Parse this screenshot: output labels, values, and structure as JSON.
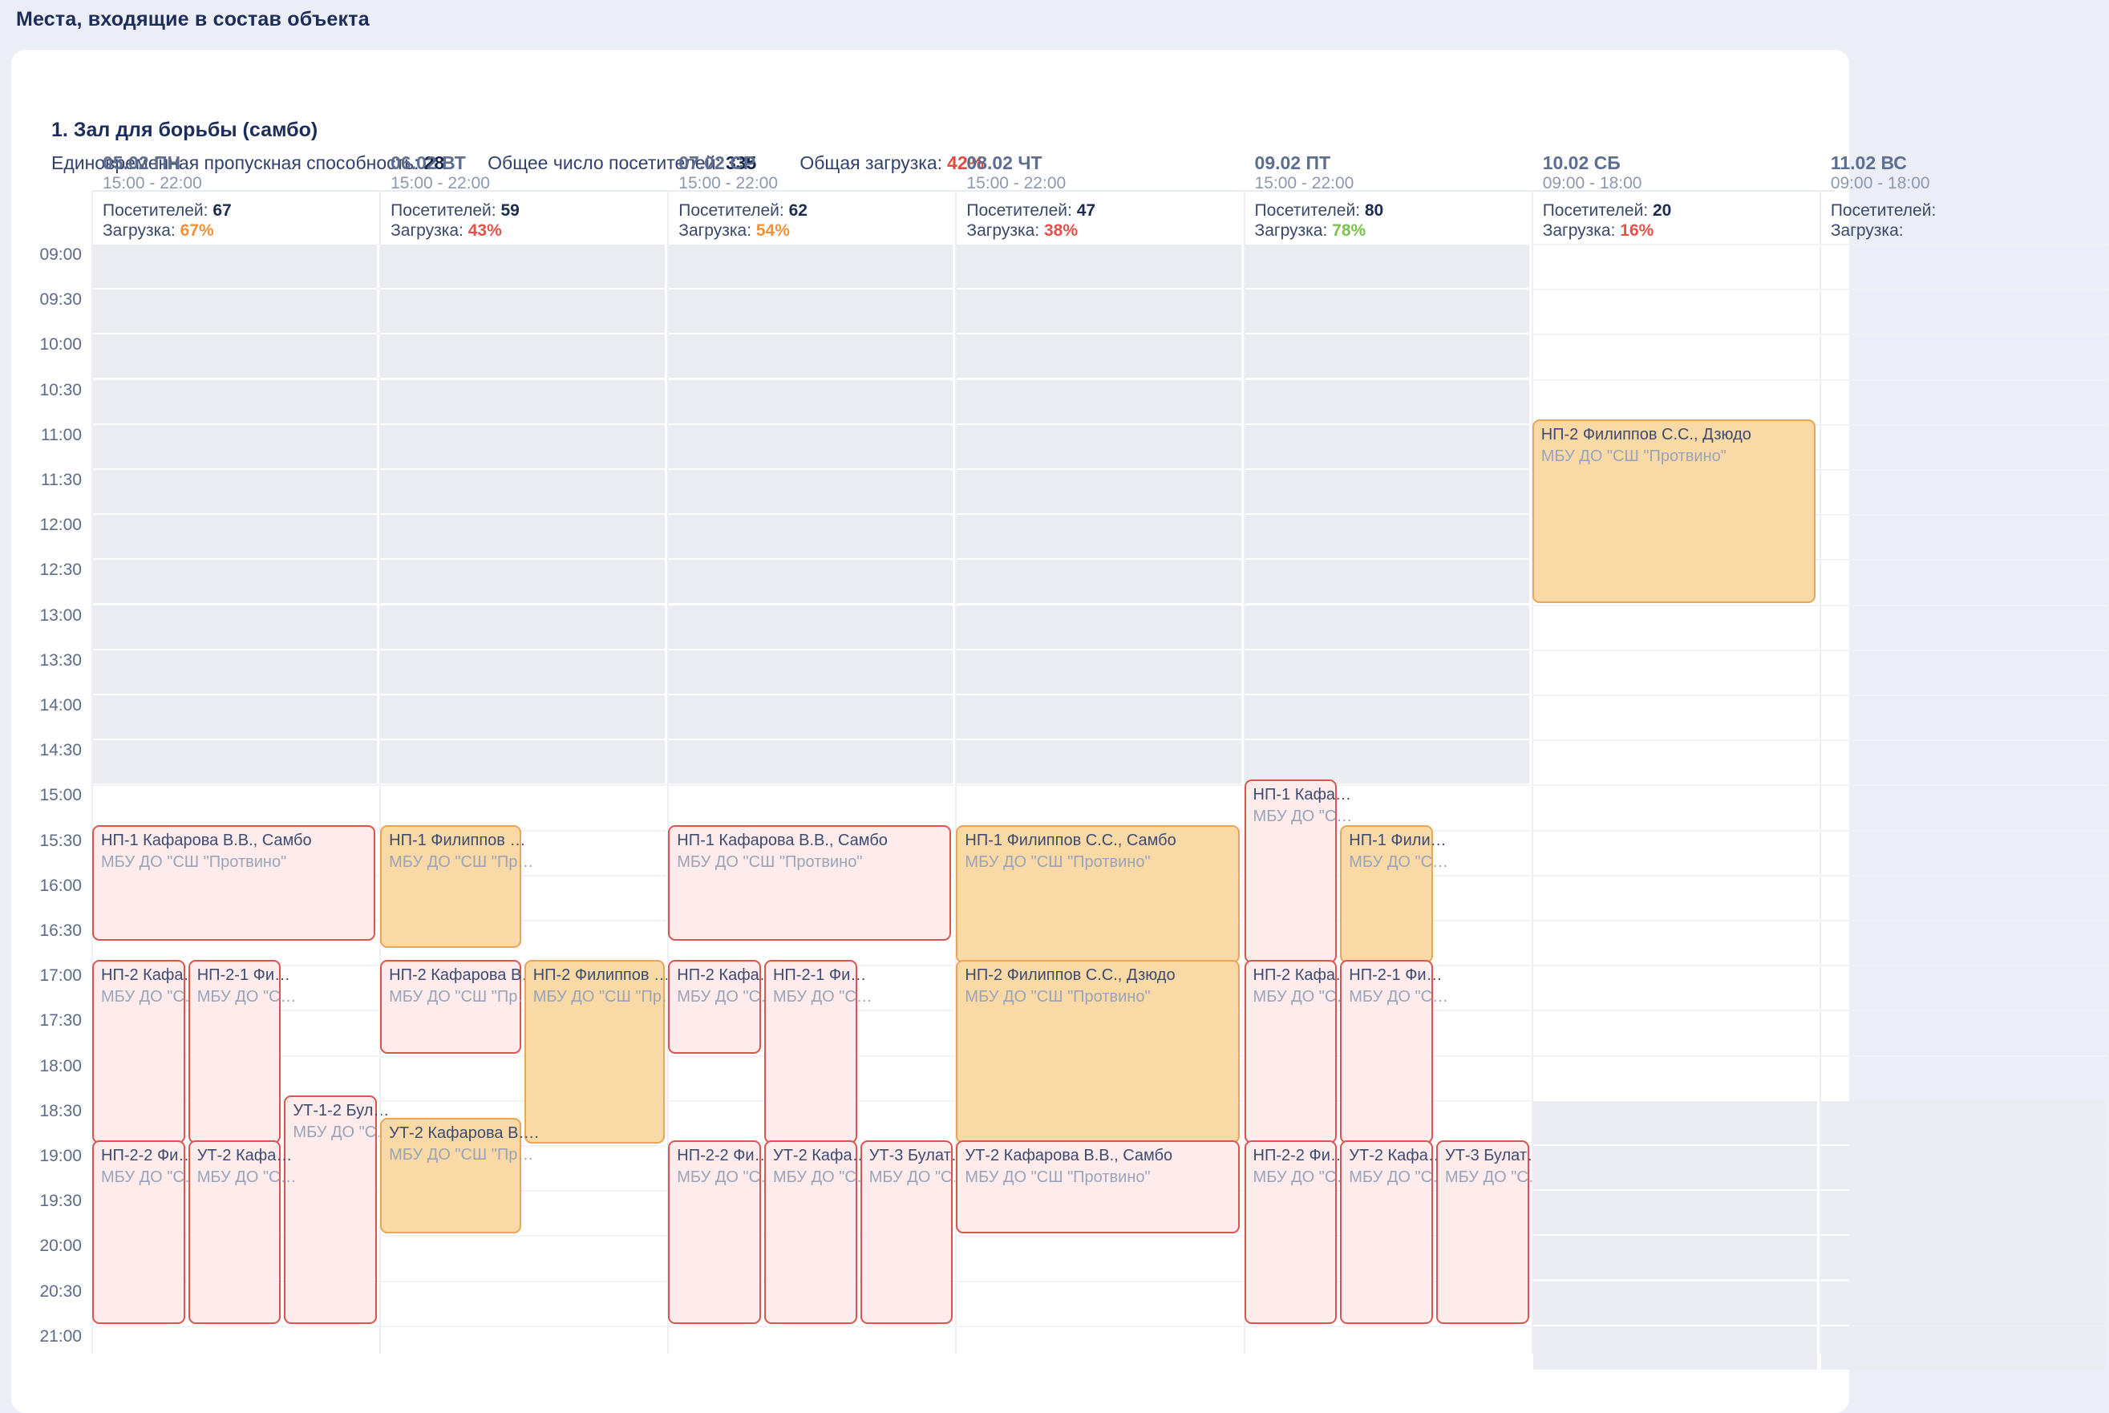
{
  "page": {
    "title": "Места, входящие в состав объекта"
  },
  "facility": {
    "title": "1. Зал для борьбы (самбо)",
    "stats": [
      {
        "label": "Единовременная пропускная способность:",
        "value": "28",
        "color": "#152349"
      },
      {
        "label": "Общее число посетителей:",
        "value": "335",
        "color": "#152349"
      },
      {
        "label": "Общая загрузка:",
        "value": "42%",
        "color": "#e8473f"
      }
    ]
  },
  "calendar": {
    "time_ticks": [
      "09:00",
      "09:30",
      "10:00",
      "10:30",
      "11:00",
      "11:30",
      "12:00",
      "12:30",
      "13:00",
      "13:30",
      "14:00",
      "14:30",
      "15:00",
      "15:30",
      "16:00",
      "16:30",
      "17:00",
      "17:30",
      "18:00",
      "18:30",
      "19:00",
      "19:30",
      "20:00",
      "20:30",
      "21:00"
    ],
    "visitors_label": "Посетителей:",
    "load_label": "Загрузка:",
    "colors": {
      "load_orange": "#f0923c",
      "load_red": "#e8504a",
      "load_green": "#7cc24e",
      "pink_bg": "#fdeceb",
      "pink_border": "#d9554f",
      "orange_bg": "#f9d9a6",
      "orange_border": "#e9a558"
    },
    "days": [
      {
        "label": "05.02 ПН",
        "hours": "15:00 - 22:00",
        "visitors": "67",
        "load": "67%",
        "load_color": "load_orange",
        "closed": [
          [
            "09:00",
            "15:00"
          ]
        ],
        "events": [
          {
            "title": "НП-1 Кафарова В.В., Самбо",
            "org": "МБУ ДО \"СШ \"Протвино\"",
            "start": "15:30",
            "end": "16:45",
            "lane": 0,
            "lanes": 1,
            "color": "pink"
          },
          {
            "title": "НП-2 Кафа…",
            "org": "МБУ ДО \"С…",
            "start": "17:00",
            "end": "19:00",
            "lane": 0,
            "lanes": 3,
            "color": "pink"
          },
          {
            "title": "НП-2-1 Фи…",
            "org": "МБУ ДО \"С…",
            "start": "17:00",
            "end": "19:00",
            "lane": 1,
            "lanes": 3,
            "color": "pink"
          },
          {
            "title": "УТ-1-2 Бул…",
            "org": "МБУ ДО \"С…",
            "start": "18:30",
            "end": "21:00",
            "lane": 2,
            "lanes": 3,
            "color": "pink"
          },
          {
            "title": "НП-2-2 Фи…",
            "org": "МБУ ДО \"С…",
            "start": "19:00",
            "end": "21:00",
            "lane": 0,
            "lanes": 3,
            "color": "pink"
          },
          {
            "title": "УТ-2 Кафа…",
            "org": "МБУ ДО \"С…",
            "start": "19:00",
            "end": "21:00",
            "lane": 1,
            "lanes": 3,
            "color": "pink"
          }
        ]
      },
      {
        "label": "06.02 ВТ",
        "hours": "15:00 - 22:00",
        "visitors": "59",
        "load": "43%",
        "load_color": "load_red",
        "closed": [
          [
            "09:00",
            "15:00"
          ]
        ],
        "events": [
          {
            "title": "НП-1 Филиппов …",
            "org": "МБУ ДО \"СШ \"Пр…",
            "start": "15:30",
            "end": "16:50",
            "lane": 0,
            "lanes": 2,
            "color": "orange"
          },
          {
            "title": "НП-2 Кафарова В…",
            "org": "МБУ ДО \"СШ \"Пр…",
            "start": "17:00",
            "end": "18:00",
            "lane": 0,
            "lanes": 2,
            "color": "pink"
          },
          {
            "title": "НП-2 Филиппов …",
            "org": "МБУ ДО \"СШ \"Пр…",
            "start": "17:00",
            "end": "19:00",
            "lane": 1,
            "lanes": 2,
            "color": "orange"
          },
          {
            "title": "УТ-2 Кафарова В….",
            "org": "МБУ ДО \"СШ \"Пр…",
            "start": "18:45",
            "end": "20:00",
            "lane": 0,
            "lanes": 2,
            "color": "orange"
          }
        ]
      },
      {
        "label": "07.02 СР",
        "hours": "15:00 - 22:00",
        "visitors": "62",
        "load": "54%",
        "load_color": "load_orange",
        "closed": [
          [
            "09:00",
            "15:00"
          ]
        ],
        "events": [
          {
            "title": "НП-1 Кафарова В.В., Самбо",
            "org": "МБУ ДО \"СШ \"Протвино\"",
            "start": "15:30",
            "end": "16:45",
            "lane": 0,
            "lanes": 1,
            "color": "pink"
          },
          {
            "title": "НП-2 Кафа…",
            "org": "МБУ ДО \"С…",
            "start": "17:00",
            "end": "18:00",
            "lane": 0,
            "lanes": 3,
            "color": "pink"
          },
          {
            "title": "НП-2-1 Фи…",
            "org": "МБУ ДО \"С…",
            "start": "17:00",
            "end": "19:00",
            "lane": 1,
            "lanes": 3,
            "color": "pink"
          },
          {
            "title": "НП-2-2 Фи…",
            "org": "МБУ ДО \"С…",
            "start": "19:00",
            "end": "21:00",
            "lane": 0,
            "lanes": 3,
            "color": "pink"
          },
          {
            "title": "УТ-2 Кафа…",
            "org": "МБУ ДО \"С…",
            "start": "19:00",
            "end": "21:00",
            "lane": 1,
            "lanes": 3,
            "color": "pink"
          },
          {
            "title": "УТ-3 Булат…",
            "org": "МБУ ДО \"С…",
            "start": "19:00",
            "end": "21:00",
            "lane": 2,
            "lanes": 3,
            "color": "pink"
          }
        ]
      },
      {
        "label": "08.02 ЧТ",
        "hours": "15:00 - 22:00",
        "visitors": "47",
        "load": "38%",
        "load_color": "load_red",
        "closed": [
          [
            "09:00",
            "15:00"
          ]
        ],
        "events": [
          {
            "title": "НП-1 Филиппов С.С., Самбо",
            "org": "МБУ ДО \"СШ \"Протвино\"",
            "start": "15:30",
            "end": "17:00",
            "lane": 0,
            "lanes": 1,
            "color": "orange"
          },
          {
            "title": "НП-2 Филиппов С.С., Дзюдо",
            "org": "МБУ ДО \"СШ \"Протвино\"",
            "start": "17:00",
            "end": "19:00",
            "lane": 0,
            "lanes": 1,
            "color": "orange"
          },
          {
            "title": "УТ-2 Кафарова В.В., Самбо",
            "org": "МБУ ДО \"СШ \"Протвино\"",
            "start": "19:00",
            "end": "20:00",
            "lane": 0,
            "lanes": 1,
            "color": "pink"
          }
        ]
      },
      {
        "label": "09.02 ПТ",
        "hours": "15:00 - 22:00",
        "visitors": "80",
        "load": "78%",
        "load_color": "load_green",
        "closed": [
          [
            "09:00",
            "15:00"
          ]
        ],
        "events": [
          {
            "title": "НП-1 Кафа…",
            "org": "МБУ ДО \"С…",
            "start": "15:00",
            "end": "17:00",
            "lane": 0,
            "lanes": 3,
            "color": "pink"
          },
          {
            "title": "НП-1 Фили…",
            "org": "МБУ ДО \"С…",
            "start": "15:30",
            "end": "17:00",
            "lane": 1,
            "lanes": 3,
            "color": "orange"
          },
          {
            "title": "НП-2 Кафа…",
            "org": "МБУ ДО \"С…",
            "start": "17:00",
            "end": "19:00",
            "lane": 0,
            "lanes": 3,
            "color": "pink"
          },
          {
            "title": "НП-2-1 Фи…",
            "org": "МБУ ДО \"С…",
            "start": "17:00",
            "end": "19:00",
            "lane": 1,
            "lanes": 3,
            "color": "pink"
          },
          {
            "title": "НП-2-2 Фи…",
            "org": "МБУ ДО \"С…",
            "start": "19:00",
            "end": "21:00",
            "lane": 0,
            "lanes": 3,
            "color": "pink"
          },
          {
            "title": "УТ-2 Кафа…",
            "org": "МБУ ДО \"С…",
            "start": "19:00",
            "end": "21:00",
            "lane": 1,
            "lanes": 3,
            "color": "pink"
          },
          {
            "title": "УТ-3 Булат…",
            "org": "МБУ ДО \"С…",
            "start": "19:00",
            "end": "21:00",
            "lane": 2,
            "lanes": 3,
            "color": "pink"
          }
        ]
      },
      {
        "label": "10.02 СБ",
        "hours": "09:00 - 18:00",
        "visitors": "20",
        "load": "16%",
        "load_color": "load_red",
        "closed": [
          [
            "18:30",
            "21:30"
          ]
        ],
        "events": [
          {
            "title": "НП-2 Филиппов С.С., Дзюдо",
            "org": "МБУ ДО \"СШ \"Протвино\"",
            "start": "11:00",
            "end": "13:00",
            "lane": 0,
            "lanes": 1,
            "color": "orange"
          }
        ]
      },
      {
        "label": "11.02 ВС",
        "hours": "09:00 - 18:00",
        "visitors": "",
        "load": "",
        "load_color": "load_red",
        "closed": [
          [
            "18:30",
            "21:30"
          ]
        ],
        "events": []
      }
    ]
  }
}
